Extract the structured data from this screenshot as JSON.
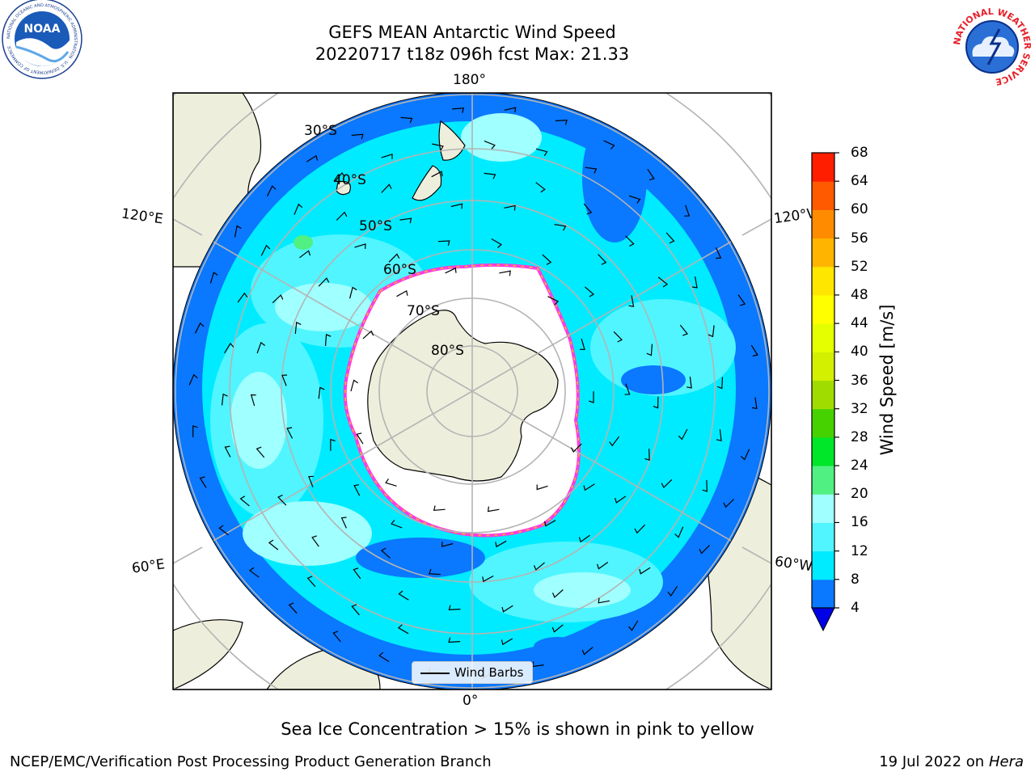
{
  "header": {
    "title_line1": "GEFS MEAN Antarctic Wind Speed",
    "title_line2": "20220717 t18z 096h fcst   Max: 21.33"
  },
  "logos": {
    "left": {
      "name": "noaa-logo",
      "text": "NOAA",
      "ring_text": "NATIONAL OCEANIC AND ATMOSPHERIC ADMINISTRATION · U.S. DEPARTMENT OF COMMERCE",
      "color": "#1a5ab8"
    },
    "right": {
      "name": "nws-logo",
      "ring_text": "NATIONAL WEATHER SERVICE",
      "color": "#e8202a"
    }
  },
  "map": {
    "projection": "south-polar-stereographic",
    "meridian_labels": {
      "top": "180°",
      "bottom": "0°",
      "left_upper": "120°E",
      "left_lower": "60°E",
      "right_upper": "120°W",
      "right_lower": "60°W"
    },
    "latitude_labels": [
      "30°S",
      "40°S",
      "50°S",
      "60°S",
      "70°S",
      "80°S"
    ],
    "colors": {
      "land": "#eeeedc",
      "ice": "#ffffff",
      "ice_edge": "#ff3cdc",
      "ice_edge_alt": "#ffb432",
      "grid": "#b4b4b4"
    },
    "legend": {
      "label": "Wind Barbs"
    }
  },
  "colorbar": {
    "label": "Wind Speed [m/s]",
    "ticks": [
      "4",
      "8",
      "12",
      "16",
      "20",
      "24",
      "28",
      "32",
      "36",
      "40",
      "44",
      "48",
      "52",
      "56",
      "60",
      "64",
      "68"
    ],
    "colors": [
      "#0a78ff",
      "#00ebff",
      "#50f5ff",
      "#a0ffff",
      "#50f082",
      "#00e628",
      "#46d200",
      "#a0dc00",
      "#d2f000",
      "#e6ff00",
      "#ffff00",
      "#ffe600",
      "#ffb400",
      "#ff8c00",
      "#ff5a00",
      "#ff1e00"
    ],
    "extend_color": "#0000e6"
  },
  "caption": "Sea Ice Concentration > 15% is shown in pink to yellow",
  "footer": {
    "left": "NCEP/EMC/Verification Post Processing Product Generation Branch",
    "right_date": "19 Jul 2022 on",
    "right_host": "Hera"
  }
}
